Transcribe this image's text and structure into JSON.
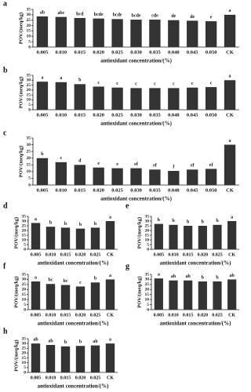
{
  "chart_data": [
    {
      "type": "bar",
      "panel_label": "a",
      "ylabel": "POV/(meq/kg)",
      "xlabel": "antioxidant concentration/(%)",
      "categories": [
        "0.005",
        "0.010",
        "0.015",
        "0.020",
        "0.025",
        "0.030",
        "0.035",
        "0.040",
        "0.045",
        "0.050",
        "CK"
      ],
      "values": [
        28.5,
        28,
        27,
        26.5,
        26,
        25.5,
        25.5,
        25,
        24.5,
        24,
        30
      ],
      "annotations": [
        "ab",
        "abc",
        "bcd",
        "bcde",
        "bcde",
        "bcde",
        "cde",
        "de",
        "de",
        "e",
        "a"
      ],
      "color": "#333333",
      "ylim": [
        0,
        35
      ],
      "yticks": [
        0,
        5,
        10,
        15,
        20,
        25,
        30,
        35
      ]
    },
    {
      "type": "bar",
      "panel_label": "b",
      "ylabel": "POV/(meq/kg)",
      "xlabel": "antioxidant concentration/(%)",
      "categories": [
        "0.005",
        "0.010",
        "0.015",
        "0.020",
        "0.025",
        "0.030",
        "0.035",
        "0.040",
        "0.045",
        "0.050",
        "CK"
      ],
      "values": [
        28.5,
        28,
        26,
        23.5,
        22.5,
        22,
        22,
        22,
        22.5,
        23,
        30
      ],
      "annotations": [
        "a",
        "a",
        "b",
        "c",
        "c",
        "c",
        "c",
        "c",
        "c",
        "c",
        "a"
      ],
      "color": "#333333",
      "ylim": [
        0,
        35
      ],
      "yticks": [
        0,
        5,
        10,
        15,
        20,
        25,
        30,
        35
      ]
    },
    {
      "type": "bar",
      "panel_label": "c",
      "ylabel": "POV/(meq/kg)",
      "xlabel": "antioxidant concentration/(%)",
      "categories": [
        "0.005",
        "0.010",
        "0.015",
        "0.020",
        "0.025",
        "0.030",
        "0.035",
        "0.040",
        "0.045",
        "0.050",
        "CK"
      ],
      "values": [
        20,
        17,
        15,
        13,
        12.5,
        12.5,
        11.5,
        10.5,
        11.5,
        12,
        30
      ],
      "annotations": [
        "b",
        "c",
        "d",
        "e",
        "e",
        "ef",
        "ef",
        "f",
        "ef",
        "ef",
        "a"
      ],
      "color": "#333333",
      "ylim": [
        0,
        35
      ],
      "yticks": [
        0,
        5,
        10,
        15,
        20,
        25,
        30,
        35
      ]
    },
    {
      "type": "bar",
      "panel_label": "d",
      "ylabel": "POV/(meq/kg)",
      "xlabel": "antioxidant concentration/(%)",
      "categories": [
        "0.005",
        "0.010",
        "0.015",
        "0.020",
        "0.025",
        "CK"
      ],
      "values": [
        28,
        24,
        23,
        22,
        23,
        30
      ],
      "annotations": [
        "a",
        "b",
        "b",
        "b",
        "b",
        "a"
      ],
      "color": "#333333",
      "ylim": [
        0,
        35
      ],
      "yticks": [
        0,
        5,
        10,
        15,
        20,
        25,
        30,
        35
      ]
    },
    {
      "type": "bar",
      "panel_label": "e",
      "ylabel": "POV/(meq/kg)",
      "xlabel": "antioxidant concentration/(%)",
      "categories": [
        "0.005",
        "0.010",
        "0.015",
        "0.020",
        "0.025",
        "CK"
      ],
      "values": [
        27,
        26,
        25,
        25,
        26,
        30
      ],
      "annotations": [
        "b",
        "b",
        "b",
        "b",
        "b",
        "a"
      ],
      "color": "#333333",
      "ylim": [
        0,
        35
      ],
      "yticks": [
        0,
        5,
        10,
        15,
        20,
        25,
        30,
        35
      ]
    },
    {
      "type": "bar",
      "panel_label": "f",
      "ylabel": "POV/(meq/kg)",
      "xlabel": "antioxidant concentration/(%)",
      "categories": [
        "0.005",
        "0.010",
        "0.015",
        "0.020",
        "0.025",
        "CK"
      ],
      "values": [
        28,
        25.5,
        24.5,
        23,
        27,
        30
      ],
      "annotations": [
        "a",
        "bc",
        "bc",
        "c",
        "b",
        "a"
      ],
      "color": "#333333",
      "ylim": [
        0,
        35
      ],
      "yticks": [
        0,
        5,
        10,
        15,
        20,
        25,
        30,
        35
      ]
    },
    {
      "type": "bar",
      "panel_label": "g",
      "ylabel": "POV/(meq/kg)",
      "xlabel": "antioxidant concentration/(%)",
      "categories": [
        "0.005",
        "0.010",
        "0.015",
        "0.020",
        "0.025",
        "CK"
      ],
      "values": [
        31,
        29,
        29,
        28,
        28,
        30
      ],
      "annotations": [
        "a",
        "ab",
        "ab",
        "b",
        "b",
        "ab"
      ],
      "color": "#333333",
      "ylim": [
        0,
        35
      ],
      "yticks": [
        0,
        5,
        10,
        15,
        20,
        25,
        30,
        35
      ]
    },
    {
      "type": "bar",
      "panel_label": "h",
      "ylabel": "POV/(meq/kg)",
      "xlabel": "antioxidant concentration/(%)",
      "categories": [
        "0.005",
        "0.010",
        "0.015",
        "0.020",
        "0.025",
        "CK"
      ],
      "values": [
        30,
        28.5,
        27,
        27.5,
        28,
        30
      ],
      "annotations": [
        "ab",
        "ab",
        "b",
        "b",
        "ab",
        "a"
      ],
      "color": "#333333",
      "ylim": [
        0,
        35
      ],
      "yticks": [
        0,
        5,
        10,
        15,
        20,
        25,
        30,
        35
      ]
    }
  ]
}
